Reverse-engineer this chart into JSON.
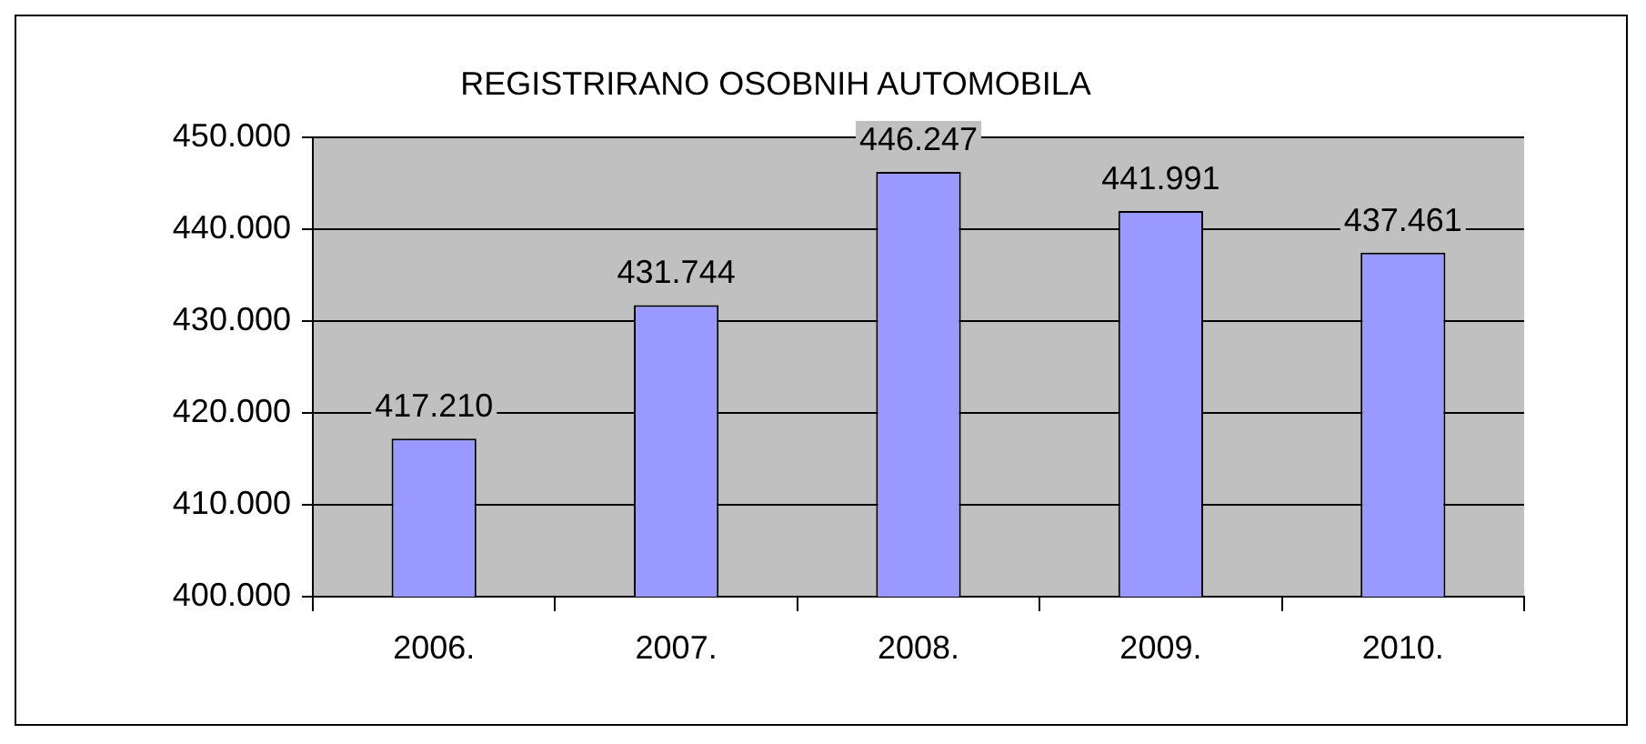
{
  "chart_data": {
    "type": "bar",
    "title": "REGISTRIRANO OSOBNIH AUTOMOBILA",
    "categories": [
      "2006.",
      "2007.",
      "2008.",
      "2009.",
      "2010."
    ],
    "values": [
      417210,
      431744,
      446247,
      441991,
      437461
    ],
    "value_labels": [
      "417.210",
      "431.744",
      "446.247",
      "441.991",
      "437.461"
    ],
    "color": "#9999ff",
    "ylim": [
      400000,
      450000
    ],
    "yticks": [
      {
        "value": 400000,
        "label": "400.000"
      },
      {
        "value": 410000,
        "label": "410.000"
      },
      {
        "value": 420000,
        "label": "420.000"
      },
      {
        "value": 430000,
        "label": "430.000"
      },
      {
        "value": 440000,
        "label": "440.000"
      },
      {
        "value": 450000,
        "label": "450.000"
      }
    ],
    "grid": "y"
  }
}
